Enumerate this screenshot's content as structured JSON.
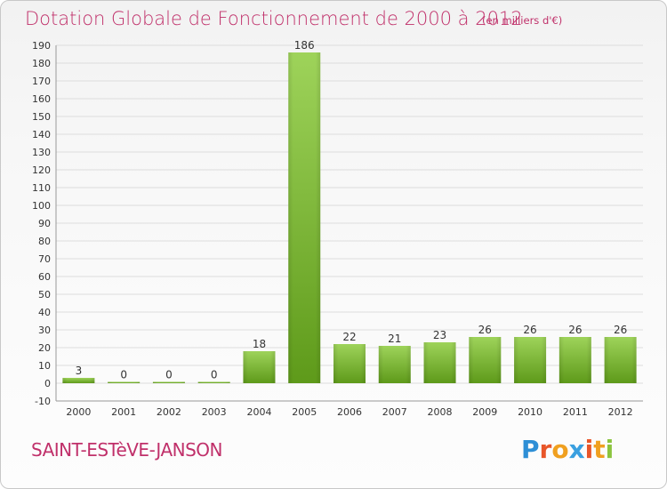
{
  "header": {
    "title": "Dotation Globale de Fonctionnement de 2000 à 2012",
    "subtitle": "(en milliers d'€)"
  },
  "footer": {
    "commune": "SAINT-ESTèVE-JANSON",
    "logo_letters": [
      "P",
      "r",
      "o",
      "x",
      "i",
      "t",
      "i"
    ]
  },
  "colors": {
    "title": "#c0306a",
    "bar_light": "#9ed35a",
    "bar_dark": "#5e9a1a",
    "grid": "#dddddd",
    "logo": [
      "#2e8fd6",
      "#e8562a",
      "#f0a020",
      "#3aa0e0",
      "#e8562a",
      "#f0a020",
      "#8bc43f"
    ]
  },
  "chart_data": {
    "type": "bar",
    "categories": [
      "2000",
      "2001",
      "2002",
      "2003",
      "2004",
      "2005",
      "2006",
      "2007",
      "2008",
      "2009",
      "2010",
      "2011",
      "2012"
    ],
    "values": [
      3,
      0,
      0,
      0,
      18,
      186,
      22,
      21,
      23,
      26,
      26,
      26,
      26
    ],
    "ylim": [
      -10,
      190
    ],
    "yticks": [
      -10,
      0,
      10,
      20,
      30,
      40,
      50,
      60,
      70,
      80,
      90,
      100,
      110,
      120,
      130,
      140,
      150,
      160,
      170,
      180,
      190
    ],
    "grid": true,
    "xlabel": "",
    "ylabel": ""
  }
}
